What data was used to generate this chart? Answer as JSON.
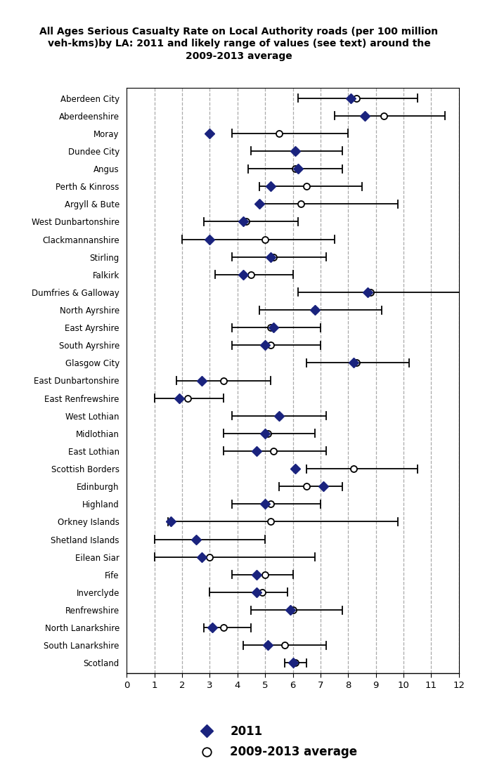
{
  "title": "All Ages Serious Casualty Rate on Local Authority roads (per 100 million\nveh-kms)by LA: 2011 and likely range of values (see text) around the\n2009-2013 average",
  "categories": [
    "Aberdeen City",
    "Aberdeenshire",
    "Moray",
    "Dundee City",
    "Angus",
    "Perth & Kinross",
    "Argyll & Bute",
    "West Dunbartonshire",
    "Clackmannanshire",
    "Stirling",
    "Falkirk",
    "Dumfries & Galloway",
    "North Ayrshire",
    "East Ayrshire",
    "South Ayrshire",
    "Glasgow City",
    "East Dunbartonshire",
    "East Renfrewshire",
    "West Lothian",
    "Midlothian",
    "East Lothian",
    "Scottish Borders",
    "Edinburgh",
    "Highland",
    "Orkney Islands",
    "Shetland Islands",
    "Eilean Siar",
    "Fife",
    "Inverclyde",
    "Renfrewshire",
    "North Lanarkshire",
    "South Lanarkshire",
    "Scotland"
  ],
  "val2011": [
    8.1,
    8.6,
    3.0,
    6.1,
    6.2,
    5.2,
    4.8,
    4.2,
    3.0,
    5.2,
    4.2,
    8.7,
    6.8,
    5.3,
    5.0,
    8.2,
    2.7,
    1.9,
    5.5,
    5.0,
    4.7,
    6.1,
    7.1,
    5.0,
    1.6,
    2.5,
    2.7,
    4.7,
    4.7,
    5.9,
    3.1,
    5.1,
    6.0
  ],
  "avg_center": [
    8.3,
    9.3,
    5.5,
    6.1,
    6.1,
    6.5,
    6.3,
    4.3,
    5.0,
    5.3,
    4.5,
    8.8,
    6.8,
    5.2,
    5.2,
    8.3,
    3.5,
    2.2,
    5.5,
    5.1,
    5.3,
    8.2,
    6.5,
    5.2,
    5.2,
    2.5,
    3.0,
    5.0,
    4.9,
    6.0,
    3.5,
    5.7,
    6.1
  ],
  "ci_low": [
    6.2,
    7.5,
    3.8,
    4.5,
    4.4,
    4.8,
    4.8,
    2.8,
    2.0,
    3.8,
    3.2,
    6.2,
    4.8,
    3.8,
    3.8,
    6.5,
    1.8,
    1.0,
    3.8,
    3.5,
    3.5,
    6.5,
    5.5,
    3.8,
    1.5,
    1.0,
    1.0,
    3.8,
    3.0,
    4.5,
    2.8,
    4.2,
    5.7
  ],
  "ci_high": [
    10.5,
    11.5,
    8.0,
    7.8,
    7.8,
    8.5,
    9.8,
    6.2,
    7.5,
    7.2,
    6.0,
    12.2,
    9.2,
    7.0,
    7.0,
    10.2,
    5.2,
    3.5,
    7.2,
    6.8,
    7.2,
    10.5,
    7.8,
    7.0,
    9.8,
    5.0,
    6.8,
    6.0,
    5.8,
    7.8,
    4.5,
    7.2,
    6.5
  ],
  "diamond_color": "#1a237e",
  "xlim": [
    0,
    12
  ],
  "xticks": [
    0,
    1,
    2,
    3,
    4,
    5,
    6,
    7,
    8,
    9,
    10,
    11,
    12
  ],
  "grid_color": "#aaaaaa",
  "legend_2011": "2011",
  "legend_avg": "2009-2013 average"
}
